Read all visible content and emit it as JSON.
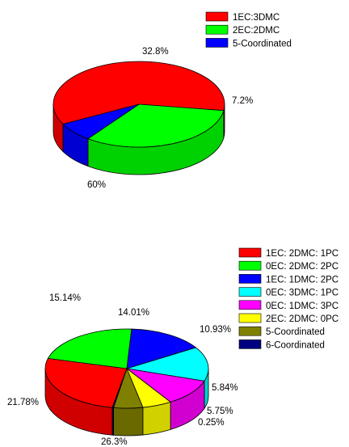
{
  "chart_data": [
    {
      "type": "pie",
      "style": "3d",
      "legend_position": "top-right",
      "series": [
        {
          "name": "1EC:3DMC",
          "value": 60.0,
          "label": "60%",
          "color": "#ff0000"
        },
        {
          "name": "2EC:2DMC",
          "value": 32.8,
          "label": "32.8%",
          "color": "#00ff00"
        },
        {
          "name": "5-Coordinated",
          "value": 7.2,
          "label": "7.2%",
          "color": "#0000ff"
        }
      ]
    },
    {
      "type": "pie",
      "style": "3d",
      "legend_position": "top-right",
      "series": [
        {
          "name": "1EC: 2DMC: 1PC",
          "value": 26.3,
          "label": "26.3%",
          "color": "#ff0000"
        },
        {
          "name": "0EC: 2DMC: 2PC",
          "value": 21.78,
          "label": "21.78%",
          "color": "#00ff00"
        },
        {
          "name": "1EC: 1DMC: 2PC",
          "value": 15.14,
          "label": "15.14%",
          "color": "#0000ff"
        },
        {
          "name": "0EC: 3DMC: 1PC",
          "value": 14.01,
          "label": "14.01%",
          "color": "#00ffff"
        },
        {
          "name": "0EC: 1DMC: 3PC",
          "value": 10.93,
          "label": "10.93%",
          "color": "#ff00ff"
        },
        {
          "name": "2EC: 2DMC: 0PC",
          "value": 5.84,
          "label": "5.84%",
          "color": "#ffff00"
        },
        {
          "name": "5-Coordinated",
          "value": 5.75,
          "label": "5.75%",
          "color": "#808000"
        },
        {
          "name": "6-Coordinated",
          "value": 0.25,
          "label": "0.25%",
          "color": "#000080"
        }
      ]
    }
  ]
}
